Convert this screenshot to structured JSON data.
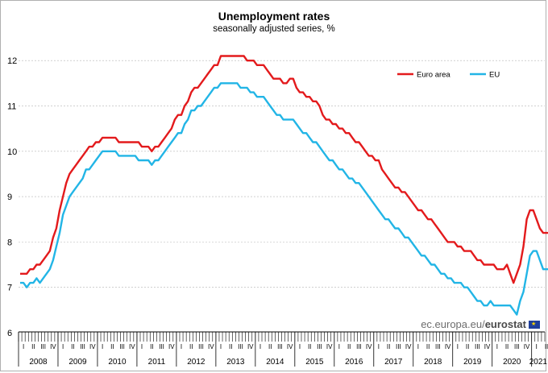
{
  "chart_data": {
    "type": "line",
    "title": "Unemployment rates",
    "subtitle": "seasonally adjusted series, %",
    "xlabel": "",
    "ylabel": "",
    "ylim": [
      6,
      12.5
    ],
    "yticks": [
      6,
      7,
      8,
      9,
      10,
      11,
      12
    ],
    "grid": true,
    "legend": "top-right",
    "start": "2008-01",
    "quarter_labels": [
      "I",
      "II",
      "III",
      "IV"
    ],
    "years": [
      "2008",
      "2009",
      "2010",
      "2011",
      "2012",
      "2013",
      "2014",
      "2015",
      "2016",
      "2017",
      "2018",
      "2019",
      "2020",
      "2021"
    ],
    "series": [
      {
        "name": "Euro area",
        "color": "#e31a1c",
        "values": [
          7.3,
          7.3,
          7.3,
          7.4,
          7.4,
          7.5,
          7.5,
          7.6,
          7.7,
          7.8,
          8.1,
          8.3,
          8.7,
          9.0,
          9.3,
          9.5,
          9.6,
          9.7,
          9.8,
          9.9,
          10.0,
          10.1,
          10.1,
          10.2,
          10.2,
          10.3,
          10.3,
          10.3,
          10.3,
          10.3,
          10.2,
          10.2,
          10.2,
          10.2,
          10.2,
          10.2,
          10.2,
          10.1,
          10.1,
          10.1,
          10.0,
          10.1,
          10.1,
          10.2,
          10.3,
          10.4,
          10.5,
          10.7,
          10.8,
          10.8,
          11.0,
          11.1,
          11.3,
          11.4,
          11.4,
          11.5,
          11.6,
          11.7,
          11.8,
          11.9,
          11.9,
          12.1,
          12.1,
          12.1,
          12.1,
          12.1,
          12.1,
          12.1,
          12.1,
          12.0,
          12.0,
          12.0,
          11.9,
          11.9,
          11.9,
          11.8,
          11.7,
          11.6,
          11.6,
          11.6,
          11.5,
          11.5,
          11.6,
          11.6,
          11.4,
          11.3,
          11.3,
          11.2,
          11.2,
          11.1,
          11.1,
          11.0,
          10.8,
          10.7,
          10.7,
          10.6,
          10.6,
          10.5,
          10.5,
          10.4,
          10.4,
          10.3,
          10.2,
          10.2,
          10.1,
          10.0,
          9.9,
          9.9,
          9.8,
          9.8,
          9.6,
          9.5,
          9.4,
          9.3,
          9.2,
          9.2,
          9.1,
          9.1,
          9.0,
          8.9,
          8.8,
          8.7,
          8.7,
          8.6,
          8.5,
          8.5,
          8.4,
          8.3,
          8.2,
          8.1,
          8.0,
          8.0,
          8.0,
          7.9,
          7.9,
          7.8,
          7.8,
          7.8,
          7.7,
          7.6,
          7.6,
          7.5,
          7.5,
          7.5,
          7.5,
          7.4,
          7.4,
          7.4,
          7.5,
          7.3,
          7.1,
          7.3,
          7.5,
          7.9,
          8.5,
          8.7,
          8.7,
          8.5,
          8.3,
          8.2,
          8.2,
          8.2,
          8.2,
          8.1
        ]
      },
      {
        "name": "EU",
        "color": "#22b5e6",
        "values": [
          7.1,
          7.1,
          7.0,
          7.1,
          7.1,
          7.2,
          7.1,
          7.2,
          7.3,
          7.4,
          7.6,
          7.9,
          8.2,
          8.6,
          8.8,
          9.0,
          9.1,
          9.2,
          9.3,
          9.4,
          9.6,
          9.6,
          9.7,
          9.8,
          9.9,
          10.0,
          10.0,
          10.0,
          10.0,
          10.0,
          9.9,
          9.9,
          9.9,
          9.9,
          9.9,
          9.9,
          9.8,
          9.8,
          9.8,
          9.8,
          9.7,
          9.8,
          9.8,
          9.9,
          10.0,
          10.1,
          10.2,
          10.3,
          10.4,
          10.4,
          10.6,
          10.7,
          10.9,
          10.9,
          11.0,
          11.0,
          11.1,
          11.2,
          11.3,
          11.4,
          11.4,
          11.5,
          11.5,
          11.5,
          11.5,
          11.5,
          11.5,
          11.4,
          11.4,
          11.4,
          11.3,
          11.3,
          11.2,
          11.2,
          11.2,
          11.1,
          11.0,
          10.9,
          10.8,
          10.8,
          10.7,
          10.7,
          10.7,
          10.7,
          10.6,
          10.5,
          10.4,
          10.4,
          10.3,
          10.2,
          10.2,
          10.1,
          10.0,
          9.9,
          9.8,
          9.8,
          9.7,
          9.6,
          9.6,
          9.5,
          9.4,
          9.4,
          9.3,
          9.3,
          9.2,
          9.1,
          9.0,
          8.9,
          8.8,
          8.7,
          8.6,
          8.5,
          8.5,
          8.4,
          8.3,
          8.3,
          8.2,
          8.1,
          8.1,
          8.0,
          7.9,
          7.8,
          7.7,
          7.7,
          7.6,
          7.5,
          7.5,
          7.4,
          7.3,
          7.3,
          7.2,
          7.2,
          7.1,
          7.1,
          7.1,
          7.0,
          7.0,
          6.9,
          6.8,
          6.7,
          6.7,
          6.6,
          6.6,
          6.7,
          6.6,
          6.6,
          6.6,
          6.6,
          6.6,
          6.6,
          6.5,
          6.4,
          6.7,
          6.9,
          7.3,
          7.7,
          7.8,
          7.8,
          7.6,
          7.4,
          7.4,
          7.4,
          7.4,
          7.3
        ]
      }
    ]
  },
  "watermark": {
    "site": "ec.europa.eu/",
    "brand": "eurostat"
  }
}
